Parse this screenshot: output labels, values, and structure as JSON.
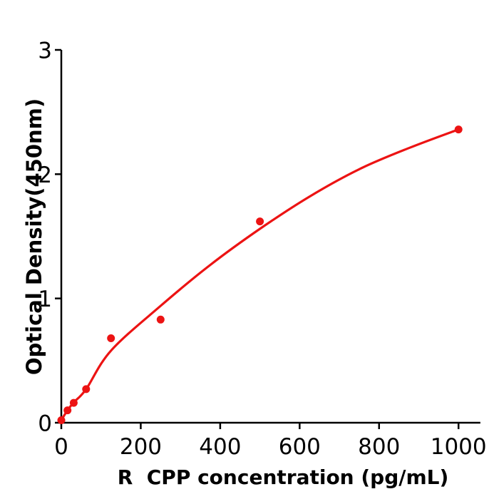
{
  "chart_data": {
    "type": "scatter",
    "title": "",
    "xlabel": "R  CPP concentration (pg/mL)",
    "ylabel": "Optical Density(450nm)",
    "xlim": [
      0,
      1055
    ],
    "ylim": [
      0,
      3
    ],
    "x_ticks": [
      0,
      200,
      400,
      600,
      800,
      1000
    ],
    "y_ticks": [
      0,
      1,
      2,
      3
    ],
    "grid": false,
    "legend": false,
    "background_color": "#ffffff",
    "axis_color": "#000000",
    "accent_color": "#ec1313",
    "series": [
      {
        "name": "standard-points",
        "kind": "scatter",
        "color": "#ec1313",
        "marker_radius": 5.5,
        "points": [
          [
            0,
            0.02
          ],
          [
            15.6,
            0.1
          ],
          [
            31.2,
            0.16
          ],
          [
            62.5,
            0.27
          ],
          [
            125,
            0.68
          ],
          [
            250,
            0.83
          ],
          [
            500,
            1.62
          ],
          [
            1000,
            2.36
          ]
        ]
      },
      {
        "name": "fit-curve",
        "kind": "line",
        "color": "#ec1313",
        "stroke_width": 3.2,
        "points": [
          [
            0,
            0.02
          ],
          [
            15.6,
            0.1
          ],
          [
            31.2,
            0.163
          ],
          [
            62.5,
            0.27
          ],
          [
            125,
            0.58
          ],
          [
            250,
            0.94
          ],
          [
            375,
            1.27
          ],
          [
            500,
            1.56
          ],
          [
            625,
            1.82
          ],
          [
            750,
            2.04
          ],
          [
            875,
            2.21
          ],
          [
            1000,
            2.36
          ]
        ]
      }
    ]
  }
}
